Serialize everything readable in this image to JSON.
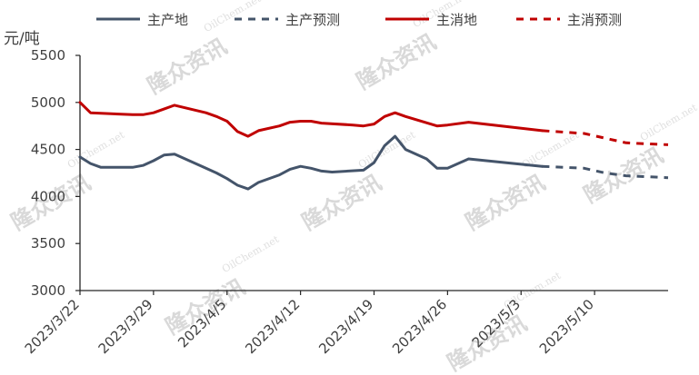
{
  "chart_data": {
    "type": "line",
    "ylabel": "元/吨",
    "ylim": [
      3000,
      5500
    ],
    "yticks": [
      3000,
      3500,
      4000,
      4500,
      5000,
      5500
    ],
    "xlim": [
      "2023-03-22",
      "2023-05-17"
    ],
    "xticks": [
      {
        "date": "2023-03-22",
        "label": "2023/3/22"
      },
      {
        "date": "2023-03-29",
        "label": "2023/3/29"
      },
      {
        "date": "2023-04-05",
        "label": "2023/4/5"
      },
      {
        "date": "2023-04-12",
        "label": "2023/4/12"
      },
      {
        "date": "2023-04-19",
        "label": "2023/4/19"
      },
      {
        "date": "2023-04-26",
        "label": "2023/4/26"
      },
      {
        "date": "2023-05-03",
        "label": "2023/5/3"
      },
      {
        "date": "2023-05-10",
        "label": "2023/5/10"
      }
    ],
    "legend_position": "top",
    "grid": false,
    "series": [
      {
        "name": "主产地",
        "color": "#44546a",
        "style": "solid",
        "points": [
          [
            "2023-03-22",
            4420
          ],
          [
            "2023-03-23",
            4350
          ],
          [
            "2023-03-24",
            4310
          ],
          [
            "2023-03-27",
            4310
          ],
          [
            "2023-03-28",
            4330
          ],
          [
            "2023-03-29",
            4380
          ],
          [
            "2023-03-30",
            4440
          ],
          [
            "2023-03-31",
            4450
          ],
          [
            "2023-04-03",
            4300
          ],
          [
            "2023-04-04",
            4250
          ],
          [
            "2023-04-05",
            4190
          ],
          [
            "2023-04-06",
            4120
          ],
          [
            "2023-04-07",
            4080
          ],
          [
            "2023-04-08",
            4150
          ],
          [
            "2023-04-10",
            4230
          ],
          [
            "2023-04-11",
            4290
          ],
          [
            "2023-04-12",
            4320
          ],
          [
            "2023-04-13",
            4300
          ],
          [
            "2023-04-14",
            4270
          ],
          [
            "2023-04-15",
            4260
          ],
          [
            "2023-04-18",
            4280
          ],
          [
            "2023-04-19",
            4360
          ],
          [
            "2023-04-20",
            4540
          ],
          [
            "2023-04-21",
            4640
          ],
          [
            "2023-04-22",
            4500
          ],
          [
            "2023-04-24",
            4400
          ],
          [
            "2023-04-25",
            4300
          ],
          [
            "2023-04-26",
            4300
          ],
          [
            "2023-04-28",
            4400
          ],
          [
            "2023-05-05",
            4320
          ]
        ]
      },
      {
        "name": "主产预测",
        "color": "#44546a",
        "style": "dashed",
        "points": [
          [
            "2023-05-05",
            4320
          ],
          [
            "2023-05-09",
            4300
          ],
          [
            "2023-05-11",
            4250
          ],
          [
            "2023-05-13",
            4220
          ],
          [
            "2023-05-15",
            4210
          ],
          [
            "2023-05-17",
            4200
          ]
        ]
      },
      {
        "name": "主消地",
        "color": "#c00000",
        "style": "solid",
        "points": [
          [
            "2023-03-22",
            5000
          ],
          [
            "2023-03-23",
            4890
          ],
          [
            "2023-03-27",
            4870
          ],
          [
            "2023-03-28",
            4870
          ],
          [
            "2023-03-29",
            4890
          ],
          [
            "2023-03-30",
            4930
          ],
          [
            "2023-03-31",
            4970
          ],
          [
            "2023-04-03",
            4890
          ],
          [
            "2023-04-04",
            4850
          ],
          [
            "2023-04-05",
            4800
          ],
          [
            "2023-04-06",
            4690
          ],
          [
            "2023-04-07",
            4640
          ],
          [
            "2023-04-08",
            4700
          ],
          [
            "2023-04-10",
            4750
          ],
          [
            "2023-04-11",
            4790
          ],
          [
            "2023-04-12",
            4800
          ],
          [
            "2023-04-13",
            4800
          ],
          [
            "2023-04-14",
            4780
          ],
          [
            "2023-04-17",
            4760
          ],
          [
            "2023-04-18",
            4750
          ],
          [
            "2023-04-19",
            4770
          ],
          [
            "2023-04-20",
            4850
          ],
          [
            "2023-04-21",
            4890
          ],
          [
            "2023-04-22",
            4850
          ],
          [
            "2023-04-25",
            4750
          ],
          [
            "2023-04-26",
            4760
          ],
          [
            "2023-04-28",
            4790
          ],
          [
            "2023-05-05",
            4700
          ]
        ]
      },
      {
        "name": "主消预测",
        "color": "#c00000",
        "style": "dashed",
        "points": [
          [
            "2023-05-05",
            4700
          ],
          [
            "2023-05-09",
            4670
          ],
          [
            "2023-05-11",
            4620
          ],
          [
            "2023-05-13",
            4570
          ],
          [
            "2023-05-15",
            4560
          ],
          [
            "2023-05-17",
            4550
          ]
        ]
      }
    ]
  },
  "watermark": {
    "cn": "隆众资讯",
    "en": "OilChem.net"
  }
}
